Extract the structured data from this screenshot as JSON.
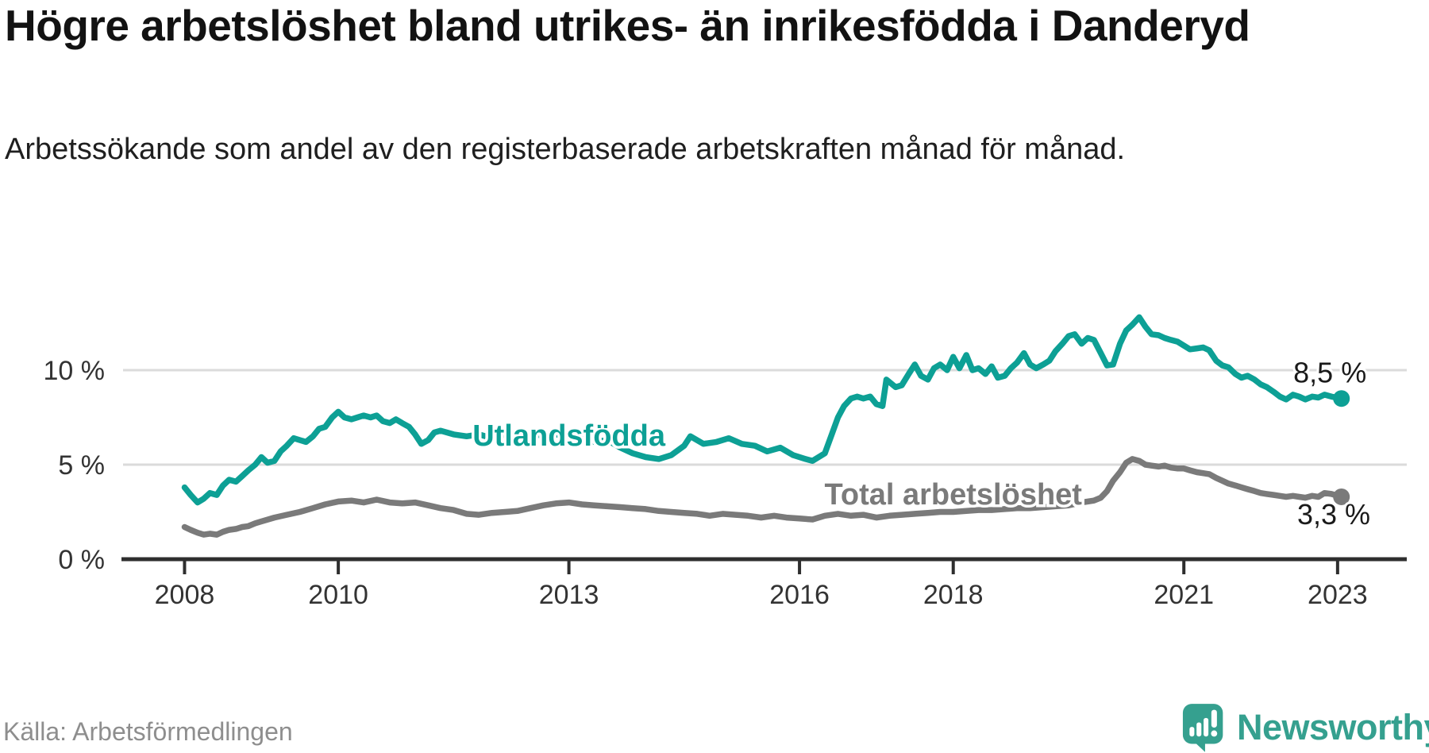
{
  "chart_data": {
    "type": "line",
    "title": "Högre arbetslöshet bland utrikes- än inrikesfödda i Danderyd",
    "subtitle": "Arbetssökande som andel av den registerbaserade arbetskraften månad för månad.",
    "xlabel": "",
    "ylabel": "",
    "xlim": [
      2007.2,
      2023.9
    ],
    "ylim": [
      0,
      15
    ],
    "grid": "horizontal",
    "xticks": [
      {
        "value": 2008,
        "label": "2008"
      },
      {
        "value": 2010,
        "label": "2010"
      },
      {
        "value": 2013,
        "label": "2013"
      },
      {
        "value": 2016,
        "label": "2016"
      },
      {
        "value": 2018,
        "label": "2018"
      },
      {
        "value": 2021,
        "label": "2021"
      },
      {
        "value": 2023,
        "label": "2023"
      }
    ],
    "yticks": [
      {
        "value": 0,
        "label": "0 %",
        "grid": false
      },
      {
        "value": 5,
        "label": "5 %",
        "grid": true
      },
      {
        "value": 10,
        "label": "10 %",
        "grid": true
      }
    ],
    "series": [
      {
        "name": "Utlandsfödda",
        "color": "#0DA095",
        "label_anchor": {
          "x": 2013.0,
          "y": 6.55
        },
        "end_label": "8,5 %",
        "end_label_anchor": {
          "x": 2022.9,
          "y": 9.85
        },
        "end_value": 8.5,
        "points": [
          [
            2008.0,
            3.8
          ],
          [
            2008.08,
            3.4
          ],
          [
            2008.17,
            3.0
          ],
          [
            2008.25,
            3.2
          ],
          [
            2008.33,
            3.5
          ],
          [
            2008.42,
            3.4
          ],
          [
            2008.5,
            3.9
          ],
          [
            2008.58,
            4.2
          ],
          [
            2008.67,
            4.1
          ],
          [
            2008.75,
            4.4
          ],
          [
            2008.83,
            4.7
          ],
          [
            2008.92,
            5.0
          ],
          [
            2009.0,
            5.4
          ],
          [
            2009.08,
            5.1
          ],
          [
            2009.17,
            5.2
          ],
          [
            2009.25,
            5.7
          ],
          [
            2009.33,
            6.0
          ],
          [
            2009.42,
            6.4
          ],
          [
            2009.5,
            6.3
          ],
          [
            2009.58,
            6.2
          ],
          [
            2009.67,
            6.5
          ],
          [
            2009.75,
            6.9
          ],
          [
            2009.83,
            7.0
          ],
          [
            2009.92,
            7.5
          ],
          [
            2010.0,
            7.8
          ],
          [
            2010.08,
            7.5
          ],
          [
            2010.17,
            7.4
          ],
          [
            2010.25,
            7.5
          ],
          [
            2010.33,
            7.6
          ],
          [
            2010.42,
            7.5
          ],
          [
            2010.5,
            7.6
          ],
          [
            2010.58,
            7.3
          ],
          [
            2010.67,
            7.2
          ],
          [
            2010.75,
            7.4
          ],
          [
            2010.83,
            7.2
          ],
          [
            2010.92,
            7.0
          ],
          [
            2011.0,
            6.6
          ],
          [
            2011.08,
            6.1
          ],
          [
            2011.17,
            6.3
          ],
          [
            2011.25,
            6.7
          ],
          [
            2011.33,
            6.8
          ],
          [
            2011.5,
            6.6
          ],
          [
            2011.67,
            6.5
          ],
          [
            2011.83,
            6.6
          ],
          [
            2012.0,
            6.4
          ],
          [
            2012.17,
            6.6
          ],
          [
            2012.33,
            6.5
          ],
          [
            2012.5,
            6.7
          ],
          [
            2012.67,
            6.5
          ],
          [
            2012.83,
            6.6
          ],
          [
            2013.0,
            6.5
          ],
          [
            2013.17,
            6.4
          ],
          [
            2013.33,
            6.2
          ],
          [
            2013.5,
            6.3
          ],
          [
            2013.67,
            5.9
          ],
          [
            2013.83,
            5.6
          ],
          [
            2014.0,
            5.4
          ],
          [
            2014.17,
            5.3
          ],
          [
            2014.33,
            5.5
          ],
          [
            2014.5,
            6.0
          ],
          [
            2014.58,
            6.5
          ],
          [
            2014.75,
            6.1
          ],
          [
            2014.92,
            6.2
          ],
          [
            2015.08,
            6.4
          ],
          [
            2015.25,
            6.1
          ],
          [
            2015.42,
            6.0
          ],
          [
            2015.58,
            5.7
          ],
          [
            2015.75,
            5.9
          ],
          [
            2015.92,
            5.5
          ],
          [
            2016.08,
            5.3
          ],
          [
            2016.17,
            5.2
          ],
          [
            2016.33,
            5.6
          ],
          [
            2016.42,
            6.6
          ],
          [
            2016.5,
            7.5
          ],
          [
            2016.58,
            8.1
          ],
          [
            2016.67,
            8.5
          ],
          [
            2016.75,
            8.6
          ],
          [
            2016.83,
            8.5
          ],
          [
            2016.92,
            8.6
          ],
          [
            2017.0,
            8.2
          ],
          [
            2017.08,
            8.1
          ],
          [
            2017.13,
            9.5
          ],
          [
            2017.25,
            9.1
          ],
          [
            2017.33,
            9.2
          ],
          [
            2017.42,
            9.8
          ],
          [
            2017.5,
            10.3
          ],
          [
            2017.58,
            9.7
          ],
          [
            2017.67,
            9.5
          ],
          [
            2017.75,
            10.1
          ],
          [
            2017.83,
            10.3
          ],
          [
            2017.92,
            10.0
          ],
          [
            2018.0,
            10.7
          ],
          [
            2018.08,
            10.1
          ],
          [
            2018.17,
            10.8
          ],
          [
            2018.25,
            10.0
          ],
          [
            2018.33,
            10.1
          ],
          [
            2018.42,
            9.8
          ],
          [
            2018.5,
            10.2
          ],
          [
            2018.58,
            9.6
          ],
          [
            2018.67,
            9.7
          ],
          [
            2018.75,
            10.1
          ],
          [
            2018.83,
            10.4
          ],
          [
            2018.92,
            10.9
          ],
          [
            2019.0,
            10.3
          ],
          [
            2019.08,
            10.1
          ],
          [
            2019.17,
            10.3
          ],
          [
            2019.25,
            10.5
          ],
          [
            2019.33,
            11.0
          ],
          [
            2019.42,
            11.4
          ],
          [
            2019.5,
            11.8
          ],
          [
            2019.58,
            11.9
          ],
          [
            2019.67,
            11.4
          ],
          [
            2019.75,
            11.7
          ],
          [
            2019.83,
            11.6
          ],
          [
            2019.92,
            10.9
          ],
          [
            2020.0,
            10.25
          ],
          [
            2020.08,
            10.3
          ],
          [
            2020.17,
            11.4
          ],
          [
            2020.25,
            12.1
          ],
          [
            2020.33,
            12.4
          ],
          [
            2020.42,
            12.8
          ],
          [
            2020.5,
            12.3
          ],
          [
            2020.58,
            11.9
          ],
          [
            2020.67,
            11.85
          ],
          [
            2020.75,
            11.7
          ],
          [
            2020.83,
            11.6
          ],
          [
            2020.92,
            11.5
          ],
          [
            2021.0,
            11.3
          ],
          [
            2021.08,
            11.1
          ],
          [
            2021.17,
            11.15
          ],
          [
            2021.25,
            11.2
          ],
          [
            2021.33,
            11.05
          ],
          [
            2021.42,
            10.5
          ],
          [
            2021.5,
            10.25
          ],
          [
            2021.58,
            10.15
          ],
          [
            2021.67,
            9.8
          ],
          [
            2021.75,
            9.6
          ],
          [
            2021.83,
            9.7
          ],
          [
            2021.92,
            9.5
          ],
          [
            2022.0,
            9.25
          ],
          [
            2022.08,
            9.1
          ],
          [
            2022.17,
            8.85
          ],
          [
            2022.25,
            8.6
          ],
          [
            2022.33,
            8.45
          ],
          [
            2022.42,
            8.7
          ],
          [
            2022.5,
            8.6
          ],
          [
            2022.58,
            8.45
          ],
          [
            2022.67,
            8.6
          ],
          [
            2022.75,
            8.55
          ],
          [
            2022.83,
            8.7
          ],
          [
            2022.92,
            8.6
          ],
          [
            2023.05,
            8.5
          ]
        ]
      },
      {
        "name": "Total arbetslöshet",
        "color": "#7A7A7A",
        "label_anchor": {
          "x": 2018.0,
          "y": 3.45
        },
        "end_label": "3,3 %",
        "end_label_anchor": {
          "x": 2022.95,
          "y": 2.35
        },
        "end_value": 3.3,
        "points": [
          [
            2008.0,
            1.7
          ],
          [
            2008.08,
            1.55
          ],
          [
            2008.17,
            1.4
          ],
          [
            2008.25,
            1.3
          ],
          [
            2008.33,
            1.35
          ],
          [
            2008.42,
            1.3
          ],
          [
            2008.5,
            1.45
          ],
          [
            2008.58,
            1.55
          ],
          [
            2008.67,
            1.6
          ],
          [
            2008.75,
            1.7
          ],
          [
            2008.83,
            1.75
          ],
          [
            2008.92,
            1.9
          ],
          [
            2009.0,
            2.0
          ],
          [
            2009.17,
            2.2
          ],
          [
            2009.33,
            2.35
          ],
          [
            2009.5,
            2.5
          ],
          [
            2009.67,
            2.7
          ],
          [
            2009.83,
            2.9
          ],
          [
            2010.0,
            3.05
          ],
          [
            2010.17,
            3.1
          ],
          [
            2010.33,
            3.0
          ],
          [
            2010.5,
            3.15
          ],
          [
            2010.67,
            3.0
          ],
          [
            2010.83,
            2.95
          ],
          [
            2011.0,
            3.0
          ],
          [
            2011.17,
            2.85
          ],
          [
            2011.33,
            2.7
          ],
          [
            2011.5,
            2.6
          ],
          [
            2011.67,
            2.4
          ],
          [
            2011.83,
            2.35
          ],
          [
            2012.0,
            2.45
          ],
          [
            2012.17,
            2.5
          ],
          [
            2012.33,
            2.55
          ],
          [
            2012.5,
            2.7
          ],
          [
            2012.67,
            2.85
          ],
          [
            2012.83,
            2.95
          ],
          [
            2013.0,
            3.0
          ],
          [
            2013.17,
            2.9
          ],
          [
            2013.33,
            2.85
          ],
          [
            2013.5,
            2.8
          ],
          [
            2013.67,
            2.75
          ],
          [
            2013.83,
            2.7
          ],
          [
            2014.0,
            2.65
          ],
          [
            2014.17,
            2.55
          ],
          [
            2014.33,
            2.5
          ],
          [
            2014.5,
            2.45
          ],
          [
            2014.67,
            2.4
          ],
          [
            2014.83,
            2.3
          ],
          [
            2015.0,
            2.4
          ],
          [
            2015.17,
            2.35
          ],
          [
            2015.33,
            2.3
          ],
          [
            2015.5,
            2.2
          ],
          [
            2015.67,
            2.3
          ],
          [
            2015.83,
            2.2
          ],
          [
            2016.0,
            2.15
          ],
          [
            2016.17,
            2.1
          ],
          [
            2016.33,
            2.3
          ],
          [
            2016.5,
            2.4
          ],
          [
            2016.67,
            2.3
          ],
          [
            2016.83,
            2.35
          ],
          [
            2017.0,
            2.2
          ],
          [
            2017.17,
            2.3
          ],
          [
            2017.33,
            2.35
          ],
          [
            2017.5,
            2.4
          ],
          [
            2017.67,
            2.45
          ],
          [
            2017.83,
            2.5
          ],
          [
            2018.0,
            2.5
          ],
          [
            2018.17,
            2.55
          ],
          [
            2018.33,
            2.6
          ],
          [
            2018.5,
            2.6
          ],
          [
            2018.67,
            2.65
          ],
          [
            2018.83,
            2.7
          ],
          [
            2019.0,
            2.7
          ],
          [
            2019.17,
            2.75
          ],
          [
            2019.33,
            2.8
          ],
          [
            2019.5,
            2.85
          ],
          [
            2019.67,
            3.0
          ],
          [
            2019.83,
            3.1
          ],
          [
            2019.92,
            3.25
          ],
          [
            2020.0,
            3.6
          ],
          [
            2020.08,
            4.15
          ],
          [
            2020.17,
            4.6
          ],
          [
            2020.25,
            5.1
          ],
          [
            2020.33,
            5.3
          ],
          [
            2020.42,
            5.2
          ],
          [
            2020.5,
            5.0
          ],
          [
            2020.58,
            4.95
          ],
          [
            2020.67,
            4.9
          ],
          [
            2020.75,
            4.95
          ],
          [
            2020.83,
            4.85
          ],
          [
            2020.92,
            4.8
          ],
          [
            2021.0,
            4.8
          ],
          [
            2021.08,
            4.7
          ],
          [
            2021.17,
            4.6
          ],
          [
            2021.25,
            4.55
          ],
          [
            2021.33,
            4.5
          ],
          [
            2021.42,
            4.3
          ],
          [
            2021.5,
            4.15
          ],
          [
            2021.58,
            4.0
          ],
          [
            2021.67,
            3.9
          ],
          [
            2021.75,
            3.8
          ],
          [
            2021.83,
            3.7
          ],
          [
            2021.92,
            3.6
          ],
          [
            2022.0,
            3.5
          ],
          [
            2022.08,
            3.45
          ],
          [
            2022.17,
            3.4
          ],
          [
            2022.25,
            3.35
          ],
          [
            2022.33,
            3.3
          ],
          [
            2022.42,
            3.35
          ],
          [
            2022.5,
            3.3
          ],
          [
            2022.58,
            3.25
          ],
          [
            2022.67,
            3.35
          ],
          [
            2022.75,
            3.3
          ],
          [
            2022.83,
            3.5
          ],
          [
            2022.92,
            3.45
          ],
          [
            2023.05,
            3.3
          ]
        ]
      }
    ]
  },
  "footer": {
    "source": "Källa: Arbetsförmedlingen",
    "brand": "Newsworthy",
    "brand_color": "#35A08F"
  },
  "style": {
    "axis_color": "#2E2E2E",
    "grid_color": "#DBDBDB",
    "tick_text_color": "#333333",
    "end_label_color": "#1A1A1A"
  }
}
